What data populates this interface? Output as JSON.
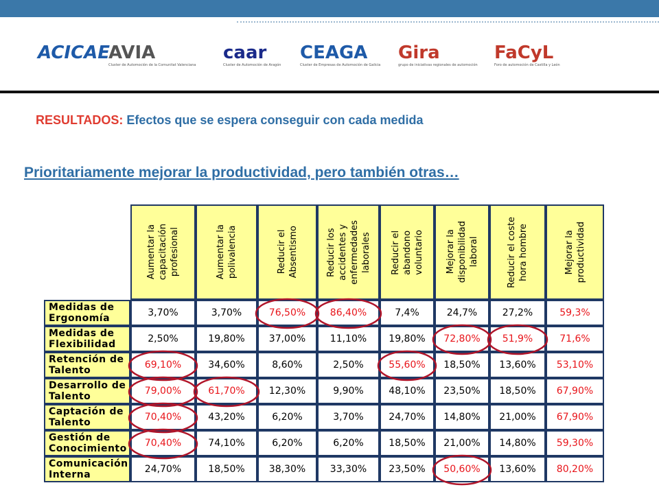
{
  "header": {
    "logos": [
      {
        "name": "ACICAE"
      },
      {
        "name": "AVIA",
        "sub": "Cluster de Automoción de la Comunitat Valenciana"
      },
      {
        "name": "caar",
        "sub": "Cluster de Automoción de Aragón"
      },
      {
        "name": "CEAGA",
        "sub": "Cluster de Empresas de Automoción de Galicia"
      },
      {
        "name": "Gira",
        "sub": "grupo de iniciativas regionales de automoción"
      },
      {
        "name": "FaCyL",
        "sub": "Foro de automoción de Castilla y León"
      }
    ]
  },
  "title": {
    "label": "RESULTADOS:",
    "text": "Efectos que se espera conseguir con cada medida"
  },
  "subtitle": "Prioritariamente mejorar la productividad, pero también otras…",
  "table": {
    "columns": [
      [
        "Aumentar la",
        "capacitación",
        "profesional"
      ],
      [
        "Aumentar la",
        "polivalencia"
      ],
      [
        "Reducir el",
        "Absentismo"
      ],
      [
        "Reducir los",
        "accidentes y",
        "enfermedades",
        "laborales"
      ],
      [
        "Reducir el",
        "abandono",
        "voluntario"
      ],
      [
        "Mejorar la",
        "disponibilidad",
        "laboral"
      ],
      [
        "Reducir el coste",
        "hora hombre"
      ],
      [
        "Mejorar la",
        "productividad"
      ]
    ],
    "rows": [
      {
        "label": [
          "Medidas de",
          "Ergonomía"
        ],
        "cells": [
          "3,70%",
          "3,70%",
          {
            "text": "76,50%",
            "color": "red",
            "circled": true
          },
          {
            "text": "86,40%",
            "color": "red",
            "circled": true
          },
          "7,4%",
          "24,7%",
          "27,2%",
          {
            "text": "59,3%",
            "color": "red"
          }
        ]
      },
      {
        "label": [
          "Medidas de",
          "Flexibilidad"
        ],
        "cells": [
          "2,50%",
          "19,80%",
          "37,00%",
          "11,10%",
          "19,80%",
          {
            "text": "72,80%",
            "color": "red",
            "circled": true
          },
          {
            "text": "51,9%",
            "color": "red",
            "circled": true
          },
          {
            "text": "71,6%",
            "color": "red"
          }
        ]
      },
      {
        "label": [
          "Retención de",
          "Talento"
        ],
        "cells": [
          {
            "text": "69,10%",
            "color": "red",
            "circled": true
          },
          "34,60%",
          "8,60%",
          "2,50%",
          {
            "text": "55,60%",
            "color": "red",
            "circled": true
          },
          "18,50%",
          "13,60%",
          {
            "text": "53,10%",
            "color": "red"
          }
        ]
      },
      {
        "label": [
          "Desarrollo de",
          "Talento"
        ],
        "cells": [
          {
            "text": "79,00%",
            "color": "red",
            "circled": true
          },
          {
            "text": "61,70%",
            "color": "red",
            "circled": true
          },
          "12,30%",
          "9,90%",
          "48,10%",
          "23,50%",
          "18,50%",
          {
            "text": "67,90%",
            "color": "red"
          }
        ]
      },
      {
        "label": [
          "Captación de",
          "Talento"
        ],
        "cells": [
          {
            "text": "70,40%",
            "color": "red",
            "circled": true
          },
          "43,20%",
          "6,20%",
          "3,70%",
          "24,70%",
          "14,80%",
          "21,00%",
          {
            "text": "67,90%",
            "color": "red"
          }
        ]
      },
      {
        "label": [
          "Gestión de",
          "Conocimiento"
        ],
        "cells": [
          {
            "text": "70,40%",
            "color": "red",
            "circled": true
          },
          "74,10%",
          "6,20%",
          "6,20%",
          "18,50%",
          "21,00%",
          "14,80%",
          {
            "text": "59,30%",
            "color": "red"
          }
        ]
      },
      {
        "label": [
          "Comunicación",
          "Interna"
        ],
        "cells": [
          "24,70%",
          "18,50%",
          "38,30%",
          "33,30%",
          "23,50%",
          {
            "text": "50,60%",
            "color": "red",
            "circled": true
          },
          "13,60%",
          {
            "text": "80,20%",
            "color": "red"
          }
        ]
      }
    ]
  }
}
